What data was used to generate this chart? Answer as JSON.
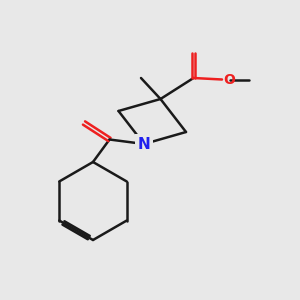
{
  "bg_color": "#e8e8e8",
  "bond_color": "#1a1a1a",
  "N_color": "#2020ee",
  "O_color": "#ee2020",
  "line_width": 1.8,
  "figsize": [
    3.0,
    3.0
  ],
  "dpi": 100
}
